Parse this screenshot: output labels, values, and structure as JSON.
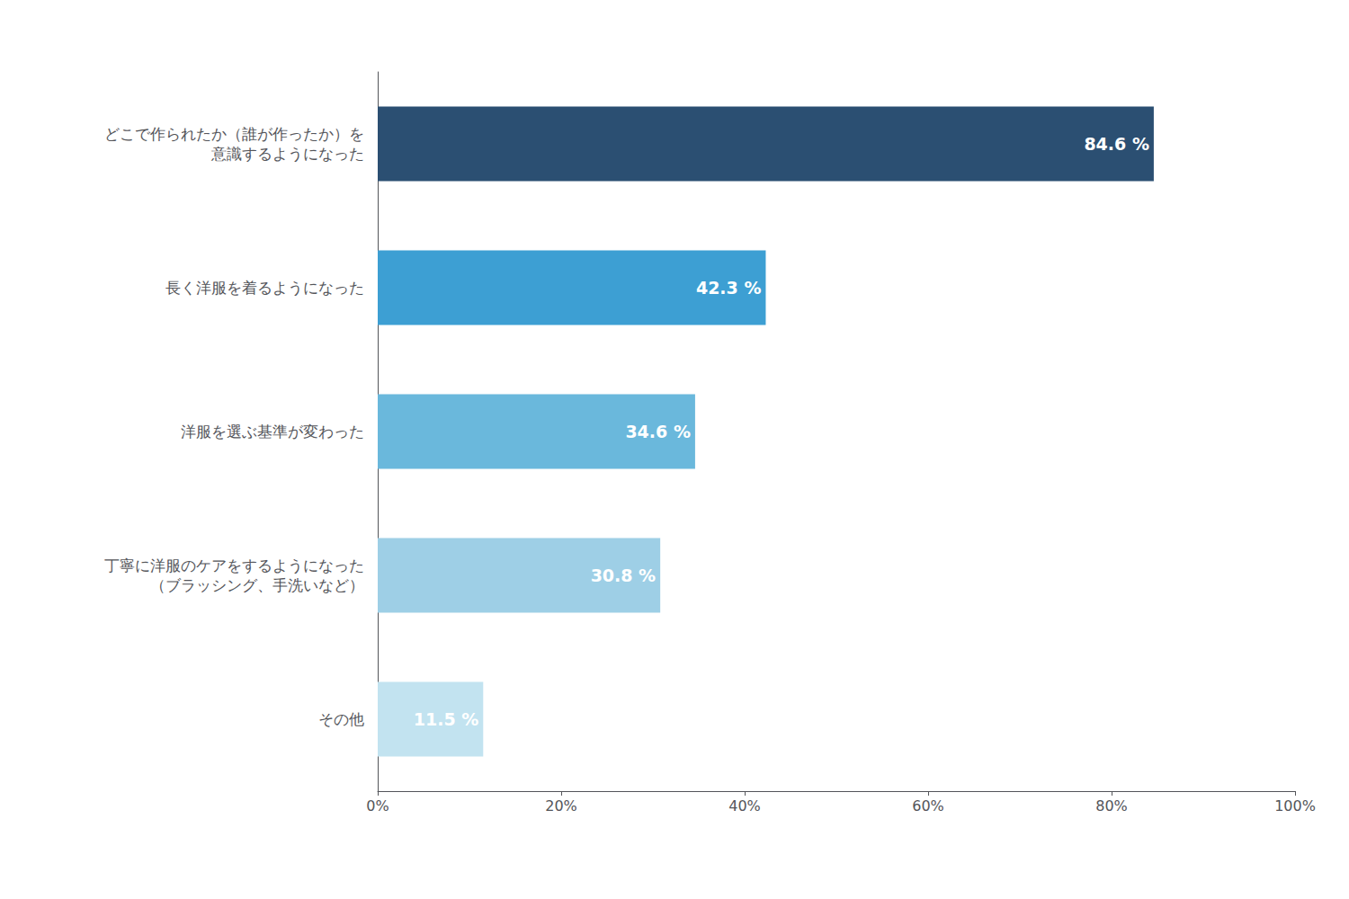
{
  "chart_data": {
    "type": "bar",
    "orientation": "horizontal",
    "categories": [
      "どこで作られたか（誰が作ったか）を\n意識するようになった",
      "長く洋服を着るようになった",
      "洋服を選ぶ基準が変わった",
      "丁寧に洋服のケアをするようになった\n（ブラッシング、手洗いなど）",
      "その他"
    ],
    "values": [
      84.6,
      42.3,
      34.6,
      30.8,
      11.5
    ],
    "value_labels": [
      "84.6 %",
      "42.3 %",
      "34.6 %",
      "30.8 %",
      "11.5 %"
    ],
    "data_labels": true,
    "colors": [
      "#2b4f72",
      "#3d9fd3",
      "#6ab8dc",
      "#9ecfe6",
      "#c2e3f0"
    ],
    "xlim": [
      0,
      100
    ],
    "xticks": [
      {
        "value": 0,
        "label": "0%"
      },
      {
        "value": 20,
        "label": "20%"
      },
      {
        "value": 40,
        "label": "40%"
      },
      {
        "value": 60,
        "label": "60%"
      },
      {
        "value": 80,
        "label": "80%"
      },
      {
        "value": 100,
        "label": "100%"
      }
    ],
    "grid": false
  }
}
